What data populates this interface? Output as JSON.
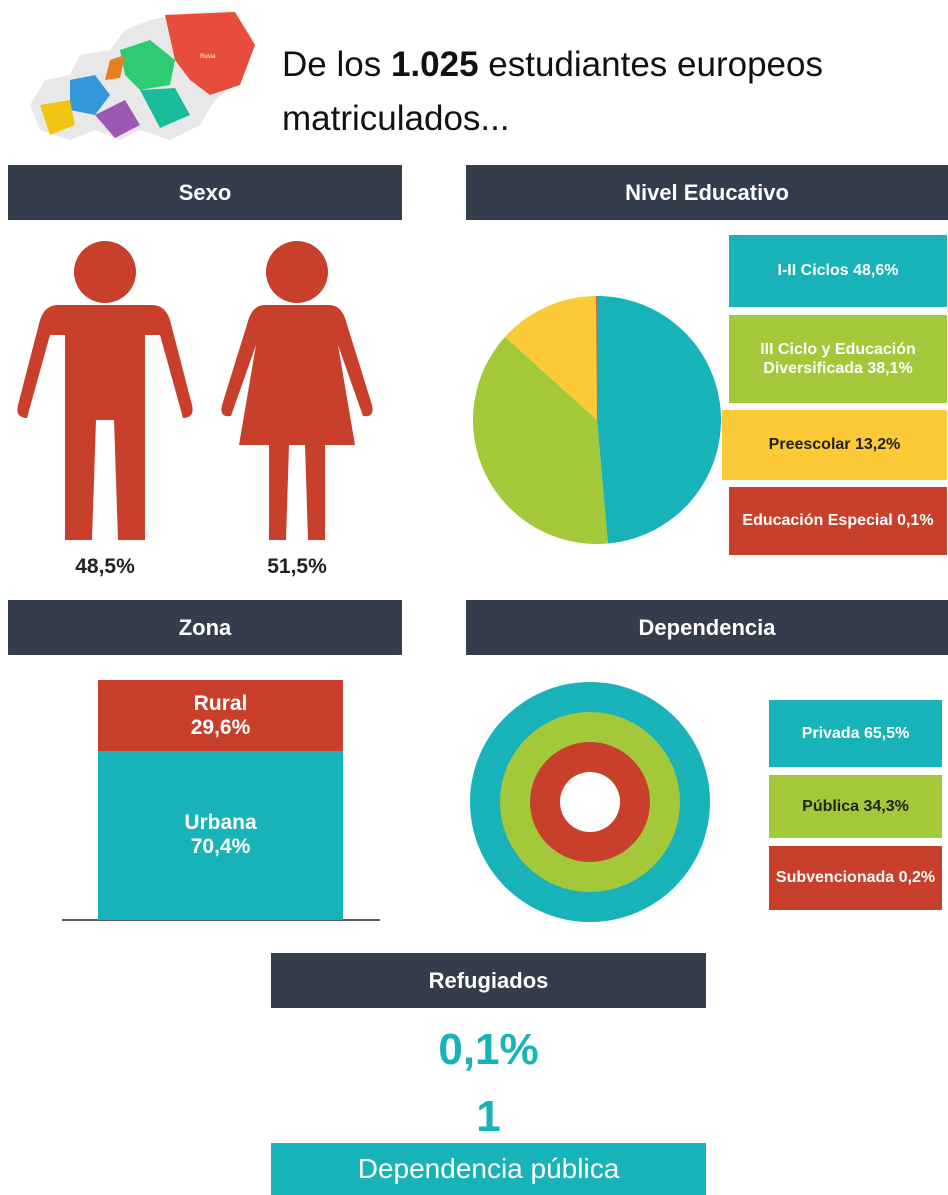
{
  "header": {
    "title_start": "De los",
    "title_number": "1.025",
    "title_end": "estudiantes europeos matriculados...",
    "map_label": "Rusia"
  },
  "sexo": {
    "title": "Sexo",
    "value_labels": [
      "48,5%",
      "51,5%"
    ]
  },
  "nivel": {
    "title": "Nivel Educativo",
    "labels": [
      "I-II Ciclos 48,6%",
      "III Ciclo y Educación Diversificada 38,1%",
      "Preescolar 13,2%",
      "Educación Especial 0,1%"
    ],
    "values": [
      48.6,
      38.1,
      13.2,
      0.1
    ],
    "colors": [
      "#17b3b8",
      "#a3c83a",
      "#fcc937",
      "#c8402c"
    ]
  },
  "zona": {
    "title": "Zona",
    "names": [
      "Rural",
      "Urbana"
    ],
    "values": [
      29.6,
      70.4
    ],
    "value_labels": [
      "29,6%",
      "70,4%"
    ],
    "colors": [
      "#c8402c",
      "#17b3b8"
    ]
  },
  "dependencia": {
    "title": "Dependencia",
    "labels": [
      "Privada 65,5%",
      "Pública 34,3%",
      "Subvencionada 0,2%"
    ],
    "colors": [
      "#17b3b8",
      "#a3c83a",
      "#c8402c"
    ]
  },
  "refugiados": {
    "title": "Refugiados",
    "percent": "0,1%",
    "count": "1",
    "note": "Dependencia pública"
  }
}
